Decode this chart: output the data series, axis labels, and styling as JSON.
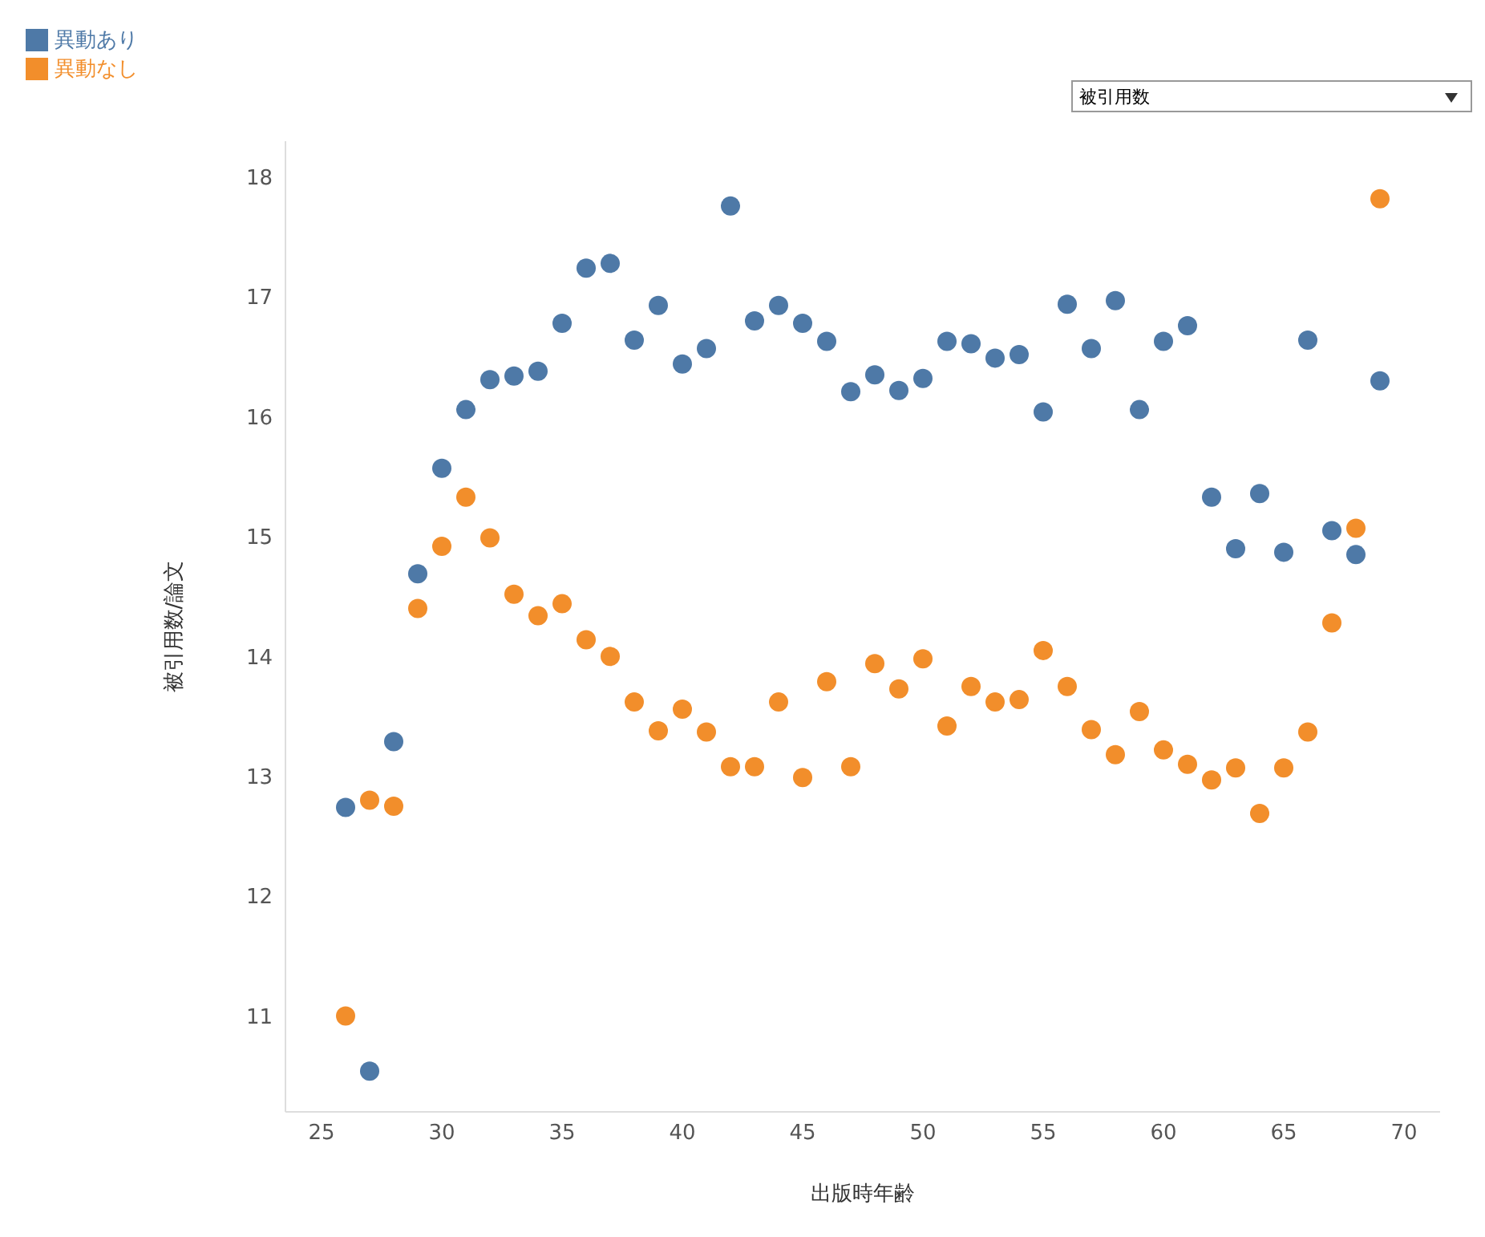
{
  "chart_data": {
    "type": "scatter",
    "xlabel": "出版時年齢",
    "ylabel": "被引用数/論文",
    "annotations": [
      "被引用数"
    ],
    "legend": "top left",
    "marker": "circle",
    "grid": false,
    "x": [
      26,
      27,
      28,
      29,
      30,
      31,
      32,
      33,
      34,
      35,
      36,
      37,
      38,
      39,
      40,
      41,
      42,
      43,
      44,
      45,
      46,
      47,
      48,
      49,
      50,
      51,
      52,
      53,
      54,
      55,
      56,
      57,
      58,
      59,
      60,
      61,
      62,
      63,
      64,
      65,
      66,
      67,
      68,
      69
    ],
    "xlim": [
      23.5,
      71.5
    ],
    "xticks": [
      25,
      30,
      35,
      40,
      45,
      50,
      55,
      60,
      65,
      70
    ],
    "ylim": [
      10.2,
      18.3
    ],
    "yticks": [
      11,
      12,
      13,
      14,
      15,
      16,
      17,
      18
    ],
    "series": [
      {
        "name": "異動あり",
        "color": "#4e79a7",
        "values": [
          12.74,
          10.54,
          13.29,
          14.69,
          15.57,
          16.06,
          16.31,
          16.34,
          16.38,
          16.78,
          17.24,
          17.28,
          16.64,
          16.93,
          16.44,
          16.57,
          17.76,
          16.8,
          16.93,
          16.78,
          16.63,
          16.21,
          16.35,
          16.22,
          16.32,
          16.63,
          16.61,
          16.49,
          16.52,
          16.04,
          16.94,
          16.57,
          16.97,
          16.06,
          16.63,
          16.76,
          15.33,
          14.9,
          15.36,
          14.87,
          16.64,
          15.05,
          14.85,
          16.3
        ]
      },
      {
        "name": "異動なし",
        "color": "#f28e2b",
        "values": [
          11.0,
          12.8,
          12.75,
          14.4,
          14.92,
          15.33,
          14.99,
          14.52,
          14.34,
          14.44,
          14.14,
          14.0,
          13.62,
          13.38,
          13.56,
          13.37,
          13.08,
          13.08,
          13.62,
          12.99,
          13.79,
          13.08,
          13.94,
          13.73,
          13.98,
          13.42,
          13.75,
          13.62,
          13.64,
          14.05,
          13.75,
          13.39,
          13.18,
          13.54,
          13.22,
          13.1,
          12.97,
          13.07,
          12.69,
          13.07,
          13.37,
          14.28,
          15.07,
          17.82
        ]
      }
    ]
  }
}
